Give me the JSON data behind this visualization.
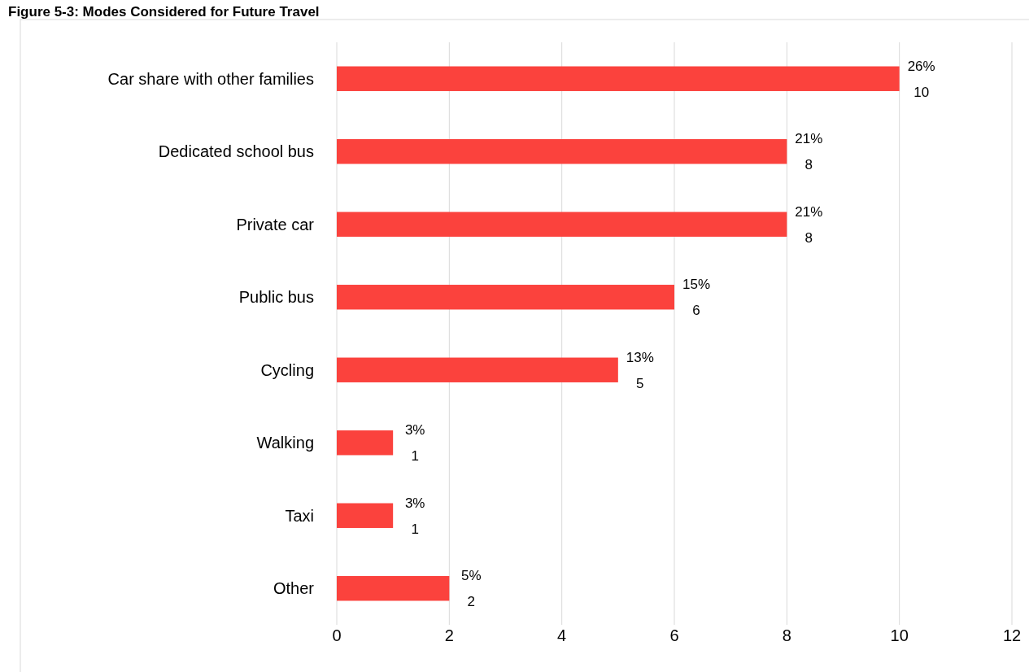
{
  "chart_data": {
    "type": "bar",
    "orientation": "horizontal",
    "title": "Figure 5-3: Modes Considered for Future Travel",
    "categories": [
      "Car share with other families",
      "Dedicated school bus",
      "Private car",
      "Public bus",
      "Cycling",
      "Walking",
      "Taxi",
      "Other"
    ],
    "values": [
      10,
      8,
      8,
      6,
      5,
      1,
      1,
      2
    ],
    "color": "#fb423d",
    "value_labels": [
      "26%\n10",
      "21%\n8",
      "21%\n8",
      "15%\n6",
      "13%\n5",
      "3%\n1",
      "3%\n1",
      "5%\n2"
    ],
    "xlim": [
      0,
      12
    ],
    "xticks": [
      0,
      2,
      4,
      6,
      8,
      10,
      12
    ],
    "grid": "x"
  }
}
